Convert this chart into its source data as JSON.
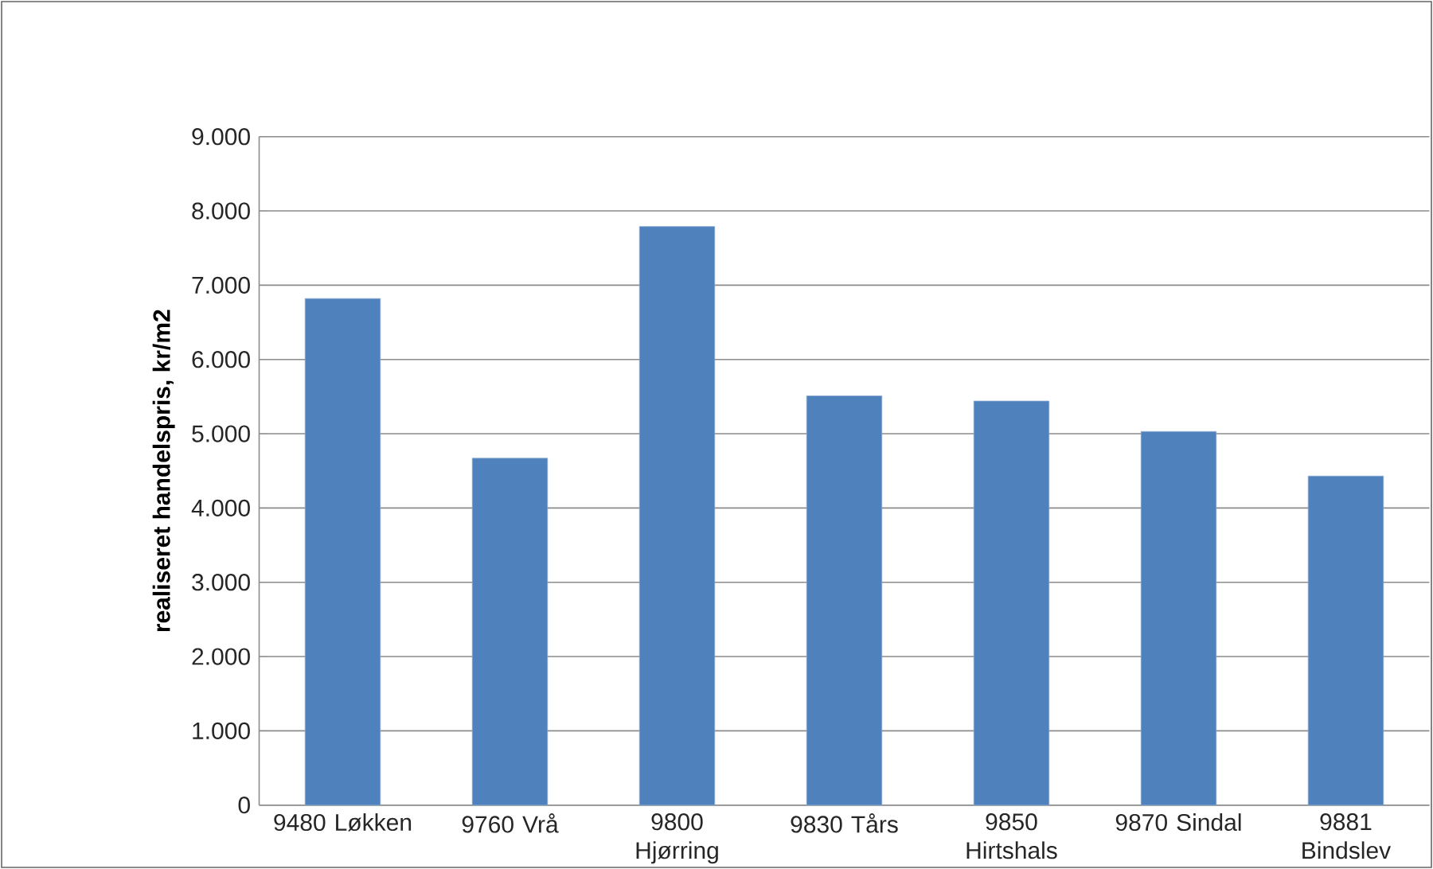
{
  "chart_data": {
    "type": "bar",
    "ylabel": "realiseret handelspris, kr/m2",
    "categories": [
      "9480 Løkken",
      "9760 Vrå",
      "9800 Hjørring",
      "9830 Tårs",
      "9850 Hirtshals",
      "9870 Sindal",
      "9881 Bindslev"
    ],
    "values": [
      6820,
      4670,
      7790,
      5510,
      5440,
      5030,
      4430
    ],
    "color": "#4f81bd",
    "ylim": [
      0,
      9000
    ],
    "yticks": [
      0,
      {
        "value": 1000,
        "label": "1.000"
      },
      {
        "value": 2000,
        "label": "2.000"
      },
      {
        "value": 3000,
        "label": "3.000"
      },
      {
        "value": 4000,
        "label": "4.000"
      },
      {
        "value": 5000,
        "label": "5.000"
      },
      {
        "value": 6000,
        "label": "6.000"
      },
      {
        "value": 7000,
        "label": "7.000"
      },
      {
        "value": 8000,
        "label": "8.000"
      },
      {
        "value": 9000,
        "label": "9.000"
      }
    ],
    "grid": "y"
  }
}
